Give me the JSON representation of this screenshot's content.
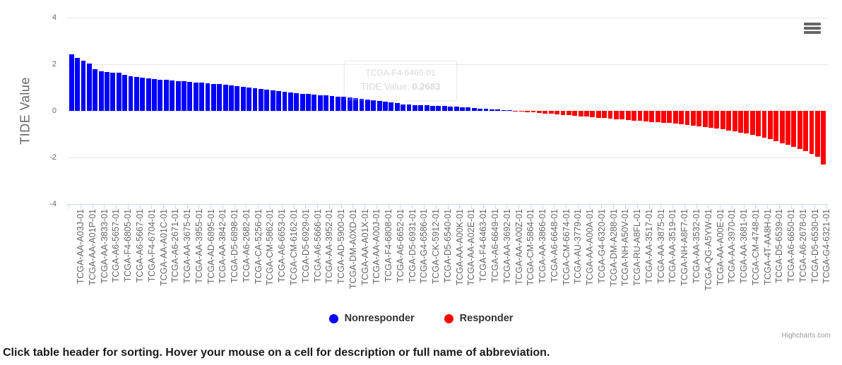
{
  "caption": "Click table header for sorting. Hover your mouse on a cell for description or full name of abbreviation.",
  "chart_data": {
    "type": "bar",
    "title": "",
    "xlabel": "",
    "ylabel": "TIDE Value",
    "ylim": [
      -4,
      4
    ],
    "yticks": [
      4,
      2,
      0,
      -2,
      -4
    ],
    "grid": true,
    "legend_position": "bottom",
    "credits": "Highcharts.com",
    "bar_count": 128,
    "label_step": 2,
    "series": [
      {
        "name": "Nonresponder",
        "color": "#0000ff"
      },
      {
        "name": "Responder",
        "color": "#ff0000"
      }
    ],
    "tooltip": {
      "title": "TCGA-F4-6460-01",
      "label": "TIDE Value:",
      "value": "0.2683"
    },
    "categories": [
      "TCGA-AA-A03J-01",
      "TCGA-AA-A01P-01",
      "TCGA-AA-3833-01",
      "TCGA-A6-5657-01",
      "TCGA-F4-6805-01",
      "TCGA-A6-5667-01",
      "TCGA-F4-6704-01",
      "TCGA-AA-A01C-01",
      "TCGA-A6-2671-01",
      "TCGA-AA-3675-01",
      "TCGA-AA-3955-01",
      "TCGA-AD-6895-01",
      "TCGA-AA-3842-01",
      "TCGA-D5-6898-01",
      "TCGA-A6-2682-01",
      "TCGA-CA-5256-01",
      "TCGA-CM-5862-01",
      "TCGA-A6-6653-01",
      "TCGA-CM-6162-01",
      "TCGA-D5-6929-01",
      "TCGA-A6-5666-01",
      "TCGA-AA-3952-01",
      "TCGA-AD-5900-01",
      "TCGA-DM-A0XD-01",
      "TCGA-AA-A01X-01",
      "TCGA-AA-A00J-01",
      "TCGA-F4-6808-01",
      "TCGA-A6-6652-01",
      "TCGA-D5-6931-01",
      "TCGA-G4-6586-01",
      "TCGA-CK-5912-01",
      "TCGA-D5-6540-01",
      "TCGA-AA-A00K-01",
      "TCGA-AA-A02E-01",
      "TCGA-F4-6463-01",
      "TCGA-A6-6649-01",
      "TCGA-AA-3692-01",
      "TCGA-AA-A00Z-01",
      "TCGA-CM-5864-01",
      "TCGA-AA-3866-01",
      "TCGA-A6-6648-01",
      "TCGA-CM-6674-01",
      "TCGA-AU-3779-01",
      "TCGA-AA-A00A-01",
      "TCGA-G4-6320-01",
      "TCGA-DM-A288-01",
      "TCGA-NH-A50V-01",
      "TCGA-RU-A8FL-01",
      "TCGA-AA-3517-01",
      "TCGA-AA-3875-01",
      "TCGA-AA-3519-01",
      "TCGA-NH-A8F7-01",
      "TCGA-AA-3532-01",
      "TCGA-QG-A5YW-01",
      "TCGA-AA-A00E-01",
      "TCGA-AA-3970-01",
      "TCGA-AA-3681-01",
      "TCGA-CM-4748-01",
      "TCGA-4T-AA8H-01",
      "TCGA-D5-6539-01",
      "TCGA-A6-6650-01",
      "TCGA-A6-2678-01",
      "TCGA-D5-6530-01",
      "TCGA-G4-6321-01"
    ],
    "values": [
      2.41,
      2.28,
      2.16,
      2.02,
      1.79,
      1.71,
      1.67,
      1.65,
      1.63,
      1.56,
      1.49,
      1.45,
      1.42,
      1.39,
      1.36,
      1.34,
      1.32,
      1.3,
      1.28,
      1.26,
      1.24,
      1.22,
      1.2,
      1.18,
      1.16,
      1.14,
      1.12,
      1.1,
      1.07,
      1.04,
      1.01,
      0.98,
      0.95,
      0.92,
      0.89,
      0.86,
      0.83,
      0.8,
      0.77,
      0.74,
      0.72,
      0.7,
      0.68,
      0.66,
      0.64,
      0.62,
      0.6,
      0.58,
      0.55,
      0.52,
      0.49,
      0.46,
      0.43,
      0.4,
      0.37,
      0.34,
      0.2683,
      0.26,
      0.25,
      0.24,
      0.23,
      0.22,
      0.21,
      0.2,
      0.19,
      0.18,
      0.16,
      0.14,
      0.12,
      0.1,
      0.08,
      0.06,
      0.05,
      0.03,
      0.02,
      -0.01,
      -0.03,
      -0.05,
      -0.07,
      -0.09,
      -0.11,
      -0.13,
      -0.15,
      -0.17,
      -0.19,
      -0.21,
      -0.23,
      -0.25,
      -0.27,
      -0.29,
      -0.31,
      -0.33,
      -0.35,
      -0.37,
      -0.39,
      -0.41,
      -0.43,
      -0.45,
      -0.47,
      -0.49,
      -0.51,
      -0.53,
      -0.55,
      -0.58,
      -0.61,
      -0.64,
      -0.67,
      -0.7,
      -0.73,
      -0.76,
      -0.8,
      -0.84,
      -0.88,
      -0.93,
      -0.98,
      -1.03,
      -1.09,
      -1.15,
      -1.22,
      -1.3,
      -1.38,
      -1.46,
      -1.55,
      -1.64,
      -1.74,
      -1.85,
      -1.97,
      -2.31
    ]
  }
}
